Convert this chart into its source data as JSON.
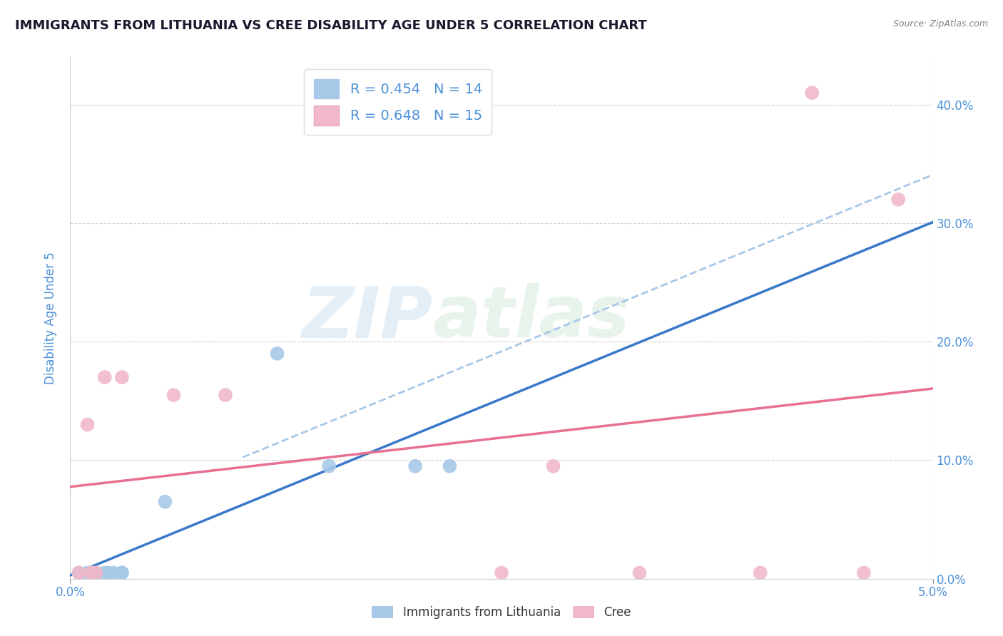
{
  "title": "IMMIGRANTS FROM LITHUANIA VS CREE DISABILITY AGE UNDER 5 CORRELATION CHART",
  "source": "Source: ZipAtlas.com",
  "ylabel": "Disability Age Under 5",
  "xlim": [
    0.0,
    0.05
  ],
  "ylim": [
    0.0,
    0.44
  ],
  "y_ticks": [
    0.0,
    0.1,
    0.2,
    0.3,
    0.4
  ],
  "blue_scatter_x": [
    0.0005,
    0.001,
    0.0012,
    0.0015,
    0.002,
    0.0022,
    0.0025,
    0.003,
    0.003,
    0.0055,
    0.012,
    0.015,
    0.02,
    0.022
  ],
  "blue_scatter_y": [
    0.005,
    0.005,
    0.005,
    0.005,
    0.005,
    0.005,
    0.005,
    0.005,
    0.005,
    0.065,
    0.19,
    0.095,
    0.095,
    0.095
  ],
  "pink_scatter_x": [
    0.0005,
    0.001,
    0.0012,
    0.0015,
    0.002,
    0.003,
    0.006,
    0.009,
    0.025,
    0.028,
    0.033,
    0.04,
    0.043,
    0.046,
    0.048
  ],
  "pink_scatter_y": [
    0.005,
    0.13,
    0.005,
    0.005,
    0.17,
    0.17,
    0.155,
    0.155,
    0.005,
    0.095,
    0.005,
    0.005,
    0.41,
    0.005,
    0.32
  ],
  "blue_R": 0.454,
  "blue_N": 14,
  "pink_R": 0.648,
  "pink_N": 15,
  "blue_color": "#a8c8e8",
  "pink_color": "#f0b8c8",
  "blue_line_color": "#3a78c9",
  "blue_dashed_color": "#a8c8e8",
  "pink_line_color": "#e87090",
  "watermark_zip": "ZIP",
  "watermark_atlas": "atlas",
  "legend_label_blue": "Immigrants from Lithuania",
  "legend_label_pink": "Cree",
  "title_color": "#1a1a2e",
  "axis_label_color": "#4a90d9",
  "tick_label_color": "#4a90d9"
}
